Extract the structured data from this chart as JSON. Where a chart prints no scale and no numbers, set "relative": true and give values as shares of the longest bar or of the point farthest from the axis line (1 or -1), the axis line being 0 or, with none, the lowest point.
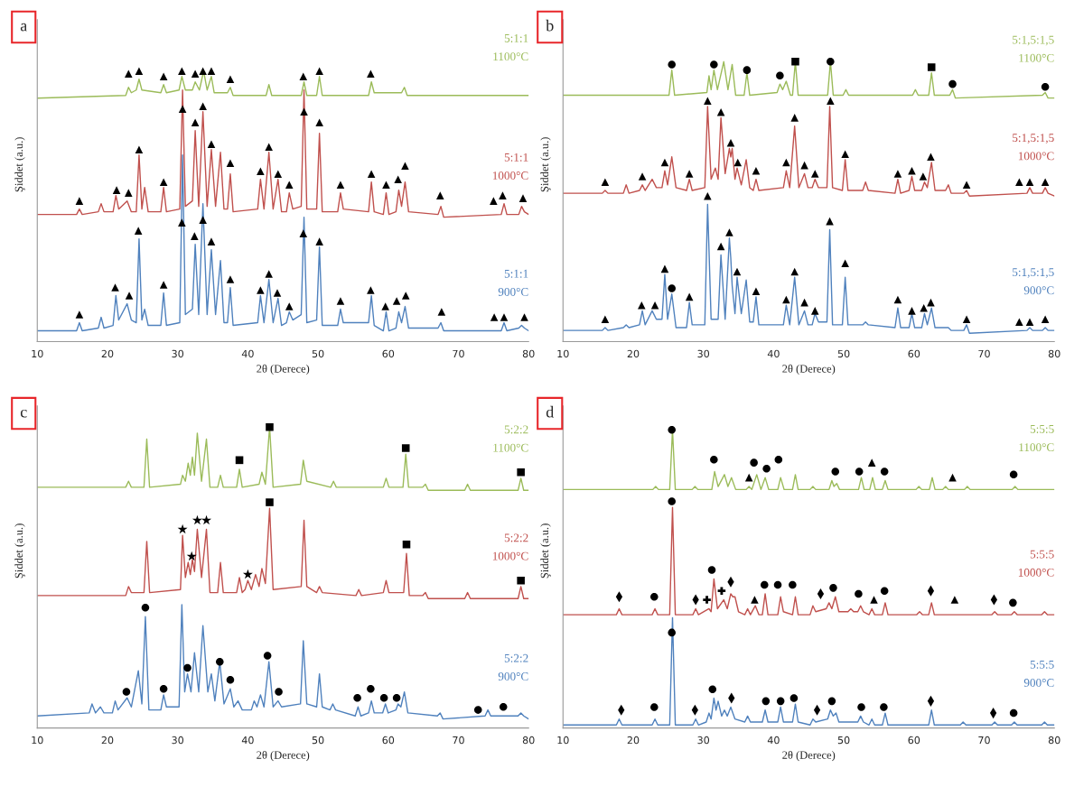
{
  "chart_data": [
    {
      "type": "line",
      "title": "a",
      "xlabel": "2θ (Derece)",
      "ylabel": "Şiddet (a.u.)",
      "relative": true,
      "xlim": [
        10,
        80
      ],
      "xticks": [
        10,
        20,
        30,
        40,
        50,
        60,
        70,
        80
      ],
      "x": [
        10,
        15.6,
        16,
        16.4,
        18.7,
        19.1,
        19.5,
        20.8,
        21.2,
        21.6,
        22.8,
        23.4,
        24.1,
        24.5,
        24.9,
        25.3,
        25.8,
        27.6,
        28,
        28.4,
        30.3,
        30.7,
        31.1,
        32.1,
        32.5,
        33,
        33.6,
        34.2,
        34.8,
        35.4,
        36.1,
        36.6,
        37.1,
        37.5,
        37.9,
        41.4,
        41.8,
        42.3,
        43,
        43.6,
        44.3,
        44.8,
        45.5,
        45.9,
        46.4,
        47.6,
        48,
        48.4,
        49.8,
        50.2,
        50.6,
        52.8,
        53.2,
        53.6,
        57.2,
        57.6,
        58,
        59.3,
        59.7,
        60.1,
        61.1,
        61.5,
        61.9,
        62.4,
        62.9,
        67.1,
        67.5,
        67.9,
        76.1,
        76.5,
        76.9,
        78.6,
        79,
        79.4,
        80
      ],
      "series": [
        {
          "name": "5:1:1\n1100°C",
          "color": "#9bbb59",
          "x": [
            10,
            22.6,
            23,
            23.4,
            24.1,
            24.5,
            24.9,
            27.6,
            28,
            28.4,
            30.2,
            30.6,
            31.1,
            32.1,
            32.5,
            33.1,
            33.7,
            34.2,
            34.8,
            35.2,
            37.1,
            37.5,
            37.9,
            42.6,
            43,
            43.4,
            47.6,
            48,
            48.4,
            49.8,
            50.2,
            50.6,
            57.2,
            57.6,
            58,
            61.9,
            62.3,
            62.7,
            80
          ],
          "values": [
            0.9,
            0.91,
            0.94,
            0.92,
            0.93,
            0.97,
            0.93,
            0.92,
            0.95,
            0.92,
            0.93,
            0.98,
            0.93,
            0.93,
            0.96,
            0.93,
            1.0,
            0.93,
            0.98,
            0.92,
            0.92,
            0.94,
            0.91,
            0.91,
            0.95,
            0.91,
            0.91,
            0.96,
            0.91,
            0.91,
            0.98,
            0.91,
            0.91,
            0.96,
            0.92,
            0.92,
            0.94,
            0.91,
            0.91
          ]
        },
        {
          "name": "5:1:1\n1000°C",
          "color": "#c0504d",
          "values": [
            0.47,
            0.47,
            0.49,
            0.47,
            0.48,
            0.51,
            0.48,
            0.48,
            0.54,
            0.49,
            0.52,
            0.48,
            0.48,
            0.69,
            0.49,
            0.57,
            0.48,
            0.48,
            0.57,
            0.48,
            0.49,
            0.93,
            0.5,
            0.52,
            0.78,
            0.5,
            0.85,
            0.5,
            0.71,
            0.5,
            0.7,
            0.49,
            0.49,
            0.62,
            0.48,
            0.49,
            0.6,
            0.49,
            0.7,
            0.49,
            0.6,
            0.48,
            0.48,
            0.55,
            0.49,
            0.5,
            0.93,
            0.49,
            0.49,
            0.77,
            0.48,
            0.48,
            0.55,
            0.49,
            0.48,
            0.59,
            0.48,
            0.47,
            0.55,
            0.47,
            0.48,
            0.56,
            0.5,
            0.59,
            0.48,
            0.47,
            0.5,
            0.46,
            0.47,
            0.51,
            0.47,
            0.47,
            0.5,
            0.48,
            0.47
          ]
        },
        {
          "name": "5:1:1\n900°C",
          "color": "#4f81bd",
          "values": [
            0.04,
            0.04,
            0.07,
            0.04,
            0.05,
            0.09,
            0.05,
            0.06,
            0.17,
            0.08,
            0.14,
            0.08,
            0.07,
            0.38,
            0.08,
            0.12,
            0.06,
            0.06,
            0.18,
            0.06,
            0.07,
            0.69,
            0.1,
            0.12,
            0.36,
            0.1,
            0.51,
            0.1,
            0.34,
            0.1,
            0.3,
            0.07,
            0.07,
            0.2,
            0.06,
            0.07,
            0.17,
            0.07,
            0.23,
            0.07,
            0.16,
            0.06,
            0.07,
            0.11,
            0.08,
            0.1,
            0.46,
            0.07,
            0.08,
            0.35,
            0.06,
            0.06,
            0.12,
            0.07,
            0.07,
            0.17,
            0.06,
            0.04,
            0.11,
            0.04,
            0.05,
            0.11,
            0.07,
            0.13,
            0.05,
            0.05,
            0.07,
            0.04,
            0.04,
            0.07,
            0.04,
            0.05,
            0.06,
            0.05,
            0.04
          ]
        },
        {
          "type": "scatter",
          "marker": "triangle",
          "color": "#000000",
          "x": [
            23,
            24.5,
            28,
            30.6,
            32.5,
            33.6,
            34.8,
            37.5,
            47.9,
            50.2,
            57.5,
            16,
            21.3,
            23,
            24.5,
            28,
            30.7,
            32.5,
            33.6,
            34.8,
            37.5,
            41.8,
            43,
            44.3,
            45.9,
            48,
            50.2,
            53.2,
            57.6,
            59.7,
            61.4,
            62.4,
            67.4,
            75,
            76.3,
            79.2,
            16,
            21.1,
            23.1,
            24.4,
            28,
            30.6,
            32.4,
            33.6,
            34.8,
            37.5,
            41.8,
            43,
            44.2,
            45.9,
            47.9,
            50.2,
            53.2,
            57.5,
            59.6,
            61.2,
            62.5,
            67.6,
            75.1,
            76.5,
            79.4
          ],
          "values": [
            0.99,
            1.0,
            0.98,
            1.0,
            0.99,
            1.0,
            1.0,
            0.97,
            0.98,
            1.0,
            0.99,
            0.52,
            0.56,
            0.55,
            0.71,
            0.59,
            0.86,
            0.81,
            0.87,
            0.73,
            0.66,
            0.63,
            0.72,
            0.62,
            0.58,
            0.85,
            0.81,
            0.58,
            0.62,
            0.58,
            0.6,
            0.65,
            0.54,
            0.52,
            0.54,
            0.53,
            0.1,
            0.2,
            0.17,
            0.41,
            0.21,
            0.44,
            0.39,
            0.45,
            0.37,
            0.23,
            0.19,
            0.25,
            0.18,
            0.13,
            0.4,
            0.37,
            0.15,
            0.19,
            0.13,
            0.15,
            0.17,
            0.11,
            0.09,
            0.09,
            0.09
          ]
        }
      ]
    },
    {
      "type": "line",
      "title": "b",
      "xlabel": "2θ (Derece)",
      "ylabel": "Şiddet (a.u.)",
      "relative": true,
      "xlim": [
        10,
        80
      ],
      "xticks": [
        10,
        20,
        30,
        40,
        50,
        60,
        70,
        80
      ],
      "x": [
        10,
        15.6,
        16,
        16.4,
        18.6,
        19,
        19.4,
        20.9,
        21.3,
        21.7,
        22.7,
        23.3,
        24.1,
        24.5,
        24.9,
        25.5,
        26.1,
        27.6,
        28,
        28.4,
        30.2,
        30.6,
        31.1,
        31.7,
        32.1,
        32.5,
        33.1,
        33.7,
        33.9,
        34.1,
        34.5,
        34.8,
        35.4,
        36.1,
        36.6,
        37.1,
        37.5,
        37.9,
        41.4,
        41.8,
        42.3,
        43,
        43.6,
        44.4,
        44.9,
        45.5,
        45.9,
        46.4,
        47.6,
        48,
        48.4,
        49.8,
        50.2,
        50.6,
        52.7,
        53.1,
        53.5,
        57.3,
        57.7,
        58.1,
        59.3,
        59.7,
        60.1,
        61.1,
        61.5,
        61.9,
        62.5,
        63,
        64.5,
        64.9,
        65.3,
        67.1,
        67.5,
        67.9,
        76.1,
        76.5,
        76.9,
        78.3,
        78.7,
        79.1,
        80
      ],
      "series": [
        {
          "name": "5:1,5:1,5\n1100°C",
          "color": "#9bbb59",
          "x": [
            10,
            25.1,
            25.5,
            25.9,
            30.5,
            30.8,
            31.1,
            31.5,
            32,
            32.9,
            33.5,
            34.1,
            34.6,
            35.8,
            36.2,
            36.6,
            40.5,
            40.9,
            41.3,
            41.8,
            42.4,
            42.7,
            43.1,
            43.5,
            47.7,
            48.1,
            48.5,
            49.9,
            50.3,
            50.7,
            59.8,
            60.2,
            60.6,
            62.1,
            62.5,
            62.9,
            65.1,
            65.5,
            65.9,
            78.3,
            78.7,
            79.1,
            80
          ],
          "values": [
            0.88,
            0.88,
            0.97,
            0.88,
            0.89,
            0.95,
            0.9,
            0.97,
            0.9,
            1.0,
            0.9,
            0.99,
            0.88,
            0.88,
            0.96,
            0.88,
            0.89,
            0.92,
            0.9,
            0.93,
            0.88,
            0.88,
            1.0,
            0.88,
            0.88,
            1.0,
            0.88,
            0.88,
            0.9,
            0.88,
            0.88,
            0.9,
            0.88,
            0.88,
            0.96,
            0.88,
            0.88,
            0.9,
            0.87,
            0.88,
            0.89,
            0.87,
            0.87
          ]
        },
        {
          "name": "5:1,5:1,5\n1000°C",
          "color": "#c0504d",
          "values": [
            0.53,
            0.53,
            0.54,
            0.53,
            0.53,
            0.56,
            0.53,
            0.54,
            0.56,
            0.54,
            0.58,
            0.55,
            0.55,
            0.61,
            0.56,
            0.66,
            0.55,
            0.54,
            0.58,
            0.54,
            0.55,
            0.84,
            0.58,
            0.62,
            0.58,
            0.8,
            0.6,
            0.69,
            0.66,
            0.69,
            0.58,
            0.62,
            0.56,
            0.65,
            0.55,
            0.54,
            0.58,
            0.54,
            0.55,
            0.61,
            0.55,
            0.77,
            0.55,
            0.6,
            0.55,
            0.55,
            0.58,
            0.55,
            0.55,
            0.84,
            0.55,
            0.54,
            0.65,
            0.54,
            0.54,
            0.57,
            0.54,
            0.53,
            0.58,
            0.53,
            0.54,
            0.59,
            0.54,
            0.54,
            0.57,
            0.55,
            0.64,
            0.54,
            0.54,
            0.56,
            0.53,
            0.53,
            0.54,
            0.52,
            0.53,
            0.55,
            0.53,
            0.53,
            0.55,
            0.53,
            0.52
          ]
        },
        {
          "name": "5:1,5:1,5\n900°C",
          "color": "#4f81bd",
          "values": [
            0.04,
            0.04,
            0.05,
            0.04,
            0.05,
            0.06,
            0.05,
            0.06,
            0.11,
            0.06,
            0.11,
            0.08,
            0.08,
            0.24,
            0.08,
            0.17,
            0.05,
            0.05,
            0.14,
            0.06,
            0.06,
            0.49,
            0.08,
            0.08,
            0.08,
            0.31,
            0.08,
            0.37,
            0.3,
            0.2,
            0.1,
            0.23,
            0.1,
            0.22,
            0.07,
            0.07,
            0.16,
            0.06,
            0.06,
            0.13,
            0.06,
            0.23,
            0.06,
            0.11,
            0.06,
            0.06,
            0.1,
            0.07,
            0.07,
            0.4,
            0.06,
            0.06,
            0.23,
            0.06,
            0.06,
            0.07,
            0.06,
            0.05,
            0.12,
            0.05,
            0.05,
            0.1,
            0.05,
            0.05,
            0.1,
            0.06,
            0.12,
            0.05,
            0.05,
            0.05,
            0.04,
            0.04,
            0.06,
            0.03,
            0.04,
            0.05,
            0.04,
            0.04,
            0.05,
            0.04,
            0.04
          ]
        },
        {
          "type": "scatter",
          "marker": "circle",
          "color": "#000000",
          "x": [
            25.5,
            31.5,
            36.2,
            40.9,
            48.1,
            65.5,
            78.7,
            25.5
          ],
          "values": [
            0.99,
            0.99,
            0.97,
            0.95,
            1.0,
            0.92,
            0.91,
            0.19
          ]
        },
        {
          "type": "scatter",
          "marker": "square",
          "color": "#000000",
          "x": [
            43.1,
            62.5
          ],
          "values": [
            1.0,
            0.98
          ]
        },
        {
          "type": "scatter",
          "marker": "triangle",
          "color": "#000000",
          "x": [
            16,
            21.3,
            24.5,
            28,
            30.6,
            32.5,
            33.9,
            34.9,
            37.5,
            41.8,
            43,
            44.4,
            45.9,
            48.1,
            50.2,
            57.7,
            59.7,
            61.3,
            62.4,
            67.5,
            75,
            76.5,
            78.7,
            16,
            21.2,
            23.1,
            24.5,
            28,
            30.6,
            32.5,
            33.7,
            34.8,
            37.5,
            41.8,
            43,
            44.4,
            45.9,
            48,
            50.2,
            57.7,
            59.7,
            61.4,
            62.4,
            67.5,
            75,
            76.5,
            78.7
          ],
          "values": [
            0.57,
            0.59,
            0.64,
            0.6,
            0.86,
            0.82,
            0.71,
            0.64,
            0.61,
            0.64,
            0.8,
            0.63,
            0.6,
            0.86,
            0.67,
            0.6,
            0.61,
            0.59,
            0.66,
            0.56,
            0.57,
            0.57,
            0.57,
            0.08,
            0.13,
            0.13,
            0.26,
            0.16,
            0.52,
            0.34,
            0.39,
            0.25,
            0.18,
            0.15,
            0.25,
            0.14,
            0.11,
            0.43,
            0.28,
            0.15,
            0.11,
            0.12,
            0.14,
            0.08,
            0.07,
            0.07,
            0.08
          ]
        }
      ]
    },
    {
      "type": "line",
      "title": "c",
      "xlabel": "2θ (Derece)",
      "ylabel": "Şiddet (a.u.)",
      "relative": true,
      "xlim": [
        10,
        80
      ],
      "xticks": [
        10,
        20,
        30,
        40,
        50,
        60,
        70,
        80
      ],
      "series": [
        {
          "name": "5:2:2\n1100°C",
          "color": "#9bbb59",
          "x": [
            10,
            22.6,
            23,
            23.4,
            25.2,
            25.6,
            26,
            30.4,
            30.7,
            31.1,
            31.5,
            31.8,
            32.1,
            32.4,
            32.8,
            33.4,
            34.1,
            34.6,
            35.7,
            36.1,
            36.5,
            38.4,
            38.8,
            39.2,
            41.6,
            42,
            42.5,
            43.1,
            43.6,
            47.5,
            47.9,
            48.4,
            51.8,
            52.2,
            52.6,
            59.3,
            59.7,
            60.1,
            62.1,
            62.5,
            62.9,
            64.9,
            65.3,
            65.7,
            70.9,
            71.3,
            71.7,
            78.5,
            78.9,
            79.3,
            80
          ],
          "values": [
            0.8,
            0.8,
            0.82,
            0.8,
            0.8,
            0.96,
            0.8,
            0.81,
            0.84,
            0.82,
            0.88,
            0.84,
            0.9,
            0.84,
            0.98,
            0.82,
            0.96,
            0.8,
            0.8,
            0.84,
            0.8,
            0.8,
            0.86,
            0.8,
            0.81,
            0.85,
            0.81,
            1.0,
            0.8,
            0.81,
            0.89,
            0.82,
            0.8,
            0.82,
            0.8,
            0.8,
            0.83,
            0.8,
            0.8,
            0.91,
            0.8,
            0.8,
            0.81,
            0.79,
            0.79,
            0.81,
            0.79,
            0.79,
            0.83,
            0.79,
            0.79
          ]
        },
        {
          "name": "5:2:2\n1000°C",
          "color": "#c0504d",
          "x": [
            10,
            22.6,
            23,
            23.4,
            25.2,
            25.6,
            26,
            30.4,
            30.7,
            31.1,
            31.5,
            31.8,
            32.1,
            32.4,
            32.8,
            33.4,
            34.1,
            34.6,
            35.7,
            36.1,
            36.5,
            38.4,
            38.8,
            39.2,
            39.6,
            40,
            40.5,
            41.1,
            41.6,
            42,
            42.5,
            43.1,
            43.6,
            47.6,
            48,
            48.4,
            49.8,
            50.2,
            50.6,
            55.4,
            55.8,
            56.2,
            59.3,
            59.7,
            60.1,
            62.2,
            62.6,
            63,
            64.9,
            65.3,
            65.7,
            70.9,
            71.3,
            71.7,
            78.5,
            78.9,
            79.3,
            80
          ],
          "values": [
            0.44,
            0.44,
            0.47,
            0.45,
            0.45,
            0.62,
            0.45,
            0.46,
            0.64,
            0.5,
            0.55,
            0.51,
            0.56,
            0.52,
            0.66,
            0.5,
            0.66,
            0.45,
            0.45,
            0.55,
            0.45,
            0.45,
            0.5,
            0.45,
            0.46,
            0.49,
            0.46,
            0.51,
            0.47,
            0.53,
            0.48,
            0.73,
            0.46,
            0.47,
            0.69,
            0.47,
            0.45,
            0.47,
            0.45,
            0.44,
            0.46,
            0.44,
            0.45,
            0.49,
            0.45,
            0.45,
            0.58,
            0.44,
            0.44,
            0.45,
            0.43,
            0.43,
            0.45,
            0.43,
            0.43,
            0.47,
            0.43,
            0.43
          ]
        },
        {
          "name": "5:2:2\n900°C",
          "color": "#4f81bd",
          "x": [
            10,
            17.4,
            17.8,
            18.3,
            19,
            19.5,
            20.7,
            21.1,
            21.5,
            22.8,
            23.4,
            24.4,
            24.9,
            25.4,
            25.9,
            27.6,
            28,
            28.4,
            30.2,
            30.6,
            31,
            31.4,
            31.9,
            32.4,
            33,
            33.6,
            34.3,
            34.8,
            35.3,
            36,
            36.6,
            37.5,
            38,
            38.6,
            39.2,
            40.5,
            40.9,
            41.3,
            41.8,
            42.3,
            43,
            43.6,
            44.3,
            44.8,
            47.5,
            47.9,
            48.4,
            49.8,
            50.2,
            50.6,
            51.7,
            52.1,
            52.5,
            55.3,
            55.7,
            56.1,
            57.2,
            57.6,
            58,
            59.2,
            59.6,
            60,
            61.1,
            61.4,
            61.8,
            62.3,
            62.8,
            67,
            67.4,
            67.8,
            73.8,
            74.2,
            74.6,
            78.5,
            78.9,
            79.3,
            80
          ],
          "values": [
            0.04,
            0.05,
            0.08,
            0.05,
            0.07,
            0.05,
            0.05,
            0.09,
            0.06,
            0.1,
            0.07,
            0.19,
            0.08,
            0.37,
            0.06,
            0.06,
            0.11,
            0.07,
            0.07,
            0.41,
            0.12,
            0.18,
            0.12,
            0.25,
            0.12,
            0.34,
            0.12,
            0.18,
            0.09,
            0.22,
            0.08,
            0.13,
            0.07,
            0.09,
            0.06,
            0.06,
            0.09,
            0.07,
            0.11,
            0.07,
            0.22,
            0.07,
            0.09,
            0.07,
            0.08,
            0.29,
            0.08,
            0.07,
            0.18,
            0.07,
            0.06,
            0.08,
            0.06,
            0.04,
            0.07,
            0.04,
            0.05,
            0.09,
            0.05,
            0.05,
            0.08,
            0.05,
            0.06,
            0.08,
            0.07,
            0.12,
            0.05,
            0.04,
            0.05,
            0.03,
            0.04,
            0.06,
            0.04,
            0.04,
            0.05,
            0.04,
            0.03
          ]
        },
        {
          "type": "scatter",
          "marker": "square",
          "color": "#000000",
          "x": [
            38.8,
            43.1,
            62.5,
            78.9,
            43.1,
            62.6,
            78.9
          ],
          "values": [
            0.89,
            1.0,
            0.93,
            0.85,
            0.75,
            0.61,
            0.49
          ]
        },
        {
          "type": "scatter",
          "marker": "star",
          "color": "#000000",
          "x": [
            30.7,
            32.8,
            34.1,
            32,
            40
          ],
          "values": [
            0.66,
            0.69,
            0.69,
            0.57,
            0.51
          ]
        },
        {
          "type": "scatter",
          "marker": "circle",
          "color": "#000000",
          "x": [
            22.7,
            25.4,
            28,
            31.4,
            36,
            37.5,
            42.8,
            44.4,
            55.6,
            57.5,
            59.4,
            61.2,
            72.8,
            76.4
          ],
          "values": [
            0.12,
            0.4,
            0.13,
            0.2,
            0.22,
            0.16,
            0.24,
            0.12,
            0.1,
            0.13,
            0.1,
            0.1,
            0.06,
            0.07
          ]
        }
      ]
    },
    {
      "type": "line",
      "title": "d",
      "xlabel": "2θ (Derece)",
      "ylabel": "Şiddet (a.u.)",
      "relative": true,
      "xlim": [
        10,
        80
      ],
      "xticks": [
        10,
        20,
        30,
        40,
        50,
        60,
        70,
        80
      ],
      "series": [
        {
          "name": "5:5:5\n1100°C",
          "color": "#9bbb59",
          "x": [
            10,
            22.8,
            23.2,
            23.6,
            25.2,
            25.6,
            26,
            28.4,
            28.8,
            29.2,
            31.2,
            31.6,
            32.1,
            33,
            33.5,
            34,
            34.6,
            36.1,
            36.5,
            36.9,
            37.6,
            38.2,
            38.8,
            39.3,
            40.6,
            41,
            41.5,
            42.7,
            43.1,
            43.5,
            45.2,
            45.6,
            46,
            47.9,
            48.3,
            48.6,
            49,
            49.4,
            52.1,
            52.5,
            52.9,
            53.7,
            54.1,
            54.5,
            55.5,
            55.9,
            56.3,
            60.3,
            60.7,
            61.1,
            62.2,
            62.6,
            63,
            64.1,
            64.5,
            64.9,
            67.2,
            67.6,
            68,
            74,
            74.4,
            74.8,
            80
          ],
          "values": [
            0.8,
            0.8,
            0.81,
            0.8,
            0.8,
            1.0,
            0.8,
            0.8,
            0.81,
            0.8,
            0.8,
            0.86,
            0.81,
            0.85,
            0.81,
            0.84,
            0.8,
            0.8,
            0.81,
            0.8,
            0.85,
            0.8,
            0.84,
            0.8,
            0.8,
            0.84,
            0.8,
            0.8,
            0.85,
            0.8,
            0.8,
            0.81,
            0.8,
            0.8,
            0.83,
            0.81,
            0.82,
            0.8,
            0.8,
            0.84,
            0.8,
            0.8,
            0.84,
            0.8,
            0.8,
            0.83,
            0.8,
            0.8,
            0.81,
            0.8,
            0.8,
            0.84,
            0.8,
            0.8,
            0.81,
            0.8,
            0.8,
            0.81,
            0.8,
            0.8,
            0.81,
            0.8,
            0.8
          ]
        },
        {
          "name": "5:5:5\n1000°C",
          "color": "#c0504d",
          "x": [
            10,
            17.6,
            18,
            18.4,
            22.7,
            23.1,
            23.5,
            25.2,
            25.6,
            26,
            28.5,
            28.9,
            29.3,
            30.8,
            31.1,
            31.5,
            32,
            32.9,
            33.4,
            33.9,
            34.2,
            34.5,
            35,
            35.9,
            36.3,
            36.7,
            37.4,
            37.9,
            38.4,
            38.8,
            39.2,
            40.6,
            41,
            41.4,
            42.7,
            43.1,
            43.5,
            45.2,
            45.6,
            46,
            47.5,
            47.9,
            48.3,
            48.8,
            49.3,
            50.6,
            51,
            51.4,
            52,
            52.4,
            52.8,
            53.6,
            54,
            54.4,
            55.5,
            55.9,
            56.3,
            60.4,
            60.8,
            61.2,
            62.1,
            62.5,
            62.9,
            71.1,
            71.5,
            71.9,
            73.9,
            74.3,
            74.7,
            78.2,
            78.6,
            79,
            80
          ],
          "values": [
            0.38,
            0.38,
            0.4,
            0.38,
            0.38,
            0.4,
            0.38,
            0.38,
            0.74,
            0.38,
            0.38,
            0.4,
            0.38,
            0.4,
            0.39,
            0.5,
            0.4,
            0.43,
            0.4,
            0.45,
            0.44,
            0.44,
            0.39,
            0.38,
            0.4,
            0.38,
            0.41,
            0.38,
            0.38,
            0.45,
            0.38,
            0.38,
            0.44,
            0.39,
            0.38,
            0.44,
            0.38,
            0.38,
            0.41,
            0.39,
            0.4,
            0.42,
            0.4,
            0.44,
            0.39,
            0.39,
            0.4,
            0.39,
            0.39,
            0.41,
            0.39,
            0.38,
            0.4,
            0.38,
            0.38,
            0.42,
            0.38,
            0.38,
            0.39,
            0.38,
            0.38,
            0.42,
            0.38,
            0.38,
            0.39,
            0.38,
            0.38,
            0.39,
            0.38,
            0.38,
            0.39,
            0.38,
            0.38
          ]
        },
        {
          "name": "5:5:5\n900°C",
          "color": "#4f81bd",
          "x": [
            10,
            17.6,
            18,
            18.4,
            22.7,
            23.1,
            23.5,
            25.2,
            25.6,
            26,
            28.5,
            28.9,
            29.3,
            30.4,
            30.8,
            31.1,
            31.5,
            31.8,
            32.1,
            32.6,
            33,
            33.4,
            33.9,
            34.5,
            35.9,
            36.3,
            36.7,
            38.4,
            38.8,
            39.2,
            40.6,
            41,
            41.4,
            42.7,
            43.1,
            43.5,
            45.2,
            45.6,
            46,
            47.7,
            48.1,
            48.5,
            48.9,
            49.3,
            52,
            52.4,
            52.8,
            53.6,
            54,
            54.4,
            55.5,
            55.9,
            56.3,
            62.1,
            62.5,
            62.9,
            66.6,
            67,
            67.4,
            71.1,
            71.5,
            71.9,
            73.9,
            74.3,
            74.7,
            78.2,
            78.6,
            79,
            80
          ],
          "values": [
            0.01,
            0.01,
            0.03,
            0.01,
            0.01,
            0.03,
            0.01,
            0.01,
            0.37,
            0.01,
            0.01,
            0.03,
            0.01,
            0.02,
            0.05,
            0.03,
            0.1,
            0.06,
            0.09,
            0.04,
            0.06,
            0.04,
            0.07,
            0.03,
            0.02,
            0.04,
            0.02,
            0.02,
            0.06,
            0.02,
            0.02,
            0.07,
            0.02,
            0.02,
            0.08,
            0.02,
            0.01,
            0.03,
            0.02,
            0.03,
            0.06,
            0.04,
            0.05,
            0.02,
            0.02,
            0.04,
            0.02,
            0.01,
            0.03,
            0.01,
            0.01,
            0.05,
            0.01,
            0.01,
            0.06,
            0.01,
            0.01,
            0.02,
            0.01,
            0.01,
            0.02,
            0.01,
            0.01,
            0.02,
            0.01,
            0.01,
            0.02,
            0.01,
            0.01
          ]
        },
        {
          "type": "scatter",
          "marker": "circle",
          "color": "#000000",
          "x": [
            25.5,
            31.5,
            37.2,
            39,
            40.7,
            48.8,
            52.2,
            55.8,
            74.2,
            23,
            25.5,
            31.2,
            38.7,
            40.6,
            42.7,
            48.5,
            52.1,
            55.8,
            74.1,
            25.5,
            23,
            31.3,
            38.9,
            41,
            42.9,
            48.3,
            52.5,
            55.7,
            74.2
          ],
          "values": [
            1.0,
            0.9,
            0.89,
            0.87,
            0.9,
            0.86,
            0.86,
            0.86,
            0.85,
            0.44,
            0.76,
            0.53,
            0.48,
            0.48,
            0.48,
            0.47,
            0.45,
            0.46,
            0.42,
            0.32,
            0.07,
            0.13,
            0.09,
            0.09,
            0.1,
            0.09,
            0.07,
            0.07,
            0.05
          ]
        },
        {
          "type": "scatter",
          "marker": "triangle",
          "color": "#000000",
          "x": [
            36.5,
            54,
            65.5,
            37.3,
            54.3,
            65.8
          ],
          "values": [
            0.84,
            0.89,
            0.84,
            0.43,
            0.43,
            0.43
          ]
        },
        {
          "type": "scatter",
          "marker": "diamond",
          "color": "#000000",
          "x": [
            18,
            28.9,
            33.9,
            46.7,
            62.4,
            71.4,
            18.3,
            28.8,
            34,
            46.2,
            62.4,
            71.3
          ],
          "values": [
            0.44,
            0.43,
            0.49,
            0.45,
            0.46,
            0.43,
            0.06,
            0.06,
            0.1,
            0.06,
            0.09,
            0.05
          ]
        },
        {
          "type": "scatter",
          "marker": "cross",
          "color": "#000000",
          "x": [
            30.5,
            32.6
          ],
          "values": [
            0.43,
            0.46
          ]
        }
      ]
    }
  ]
}
